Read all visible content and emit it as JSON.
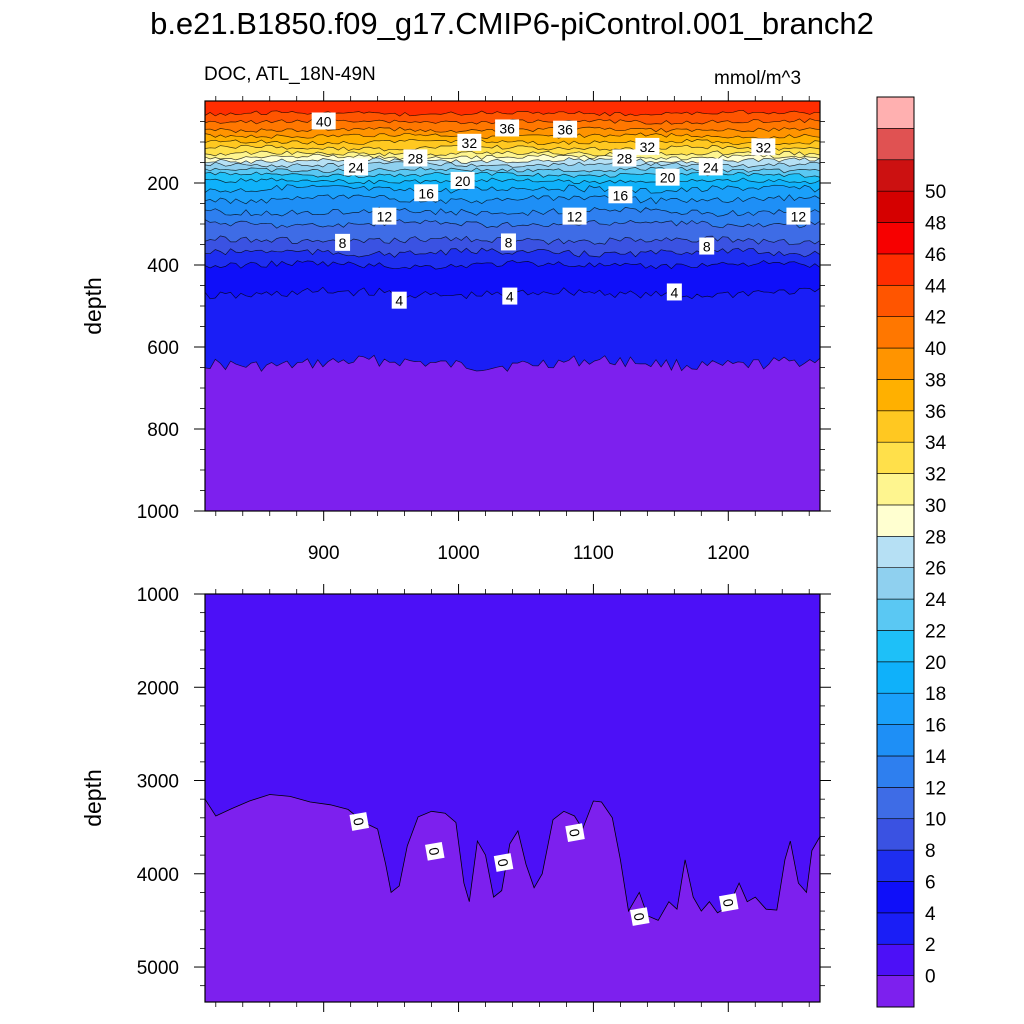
{
  "title": "b.e21.B1850.f09_g17.CMIP6-piControl.001_branch2",
  "variable_label": "DOC, ATL_18N-49N",
  "units": "mmol/m^3",
  "chart_data": {
    "type": "contour",
    "colorbar": {
      "levels": [
        0,
        2,
        4,
        6,
        8,
        10,
        12,
        14,
        16,
        18,
        20,
        22,
        24,
        26,
        28,
        30,
        32,
        34,
        36,
        38,
        40,
        42,
        44,
        46,
        48,
        50
      ],
      "tick_labels": [
        "0",
        "2",
        "4",
        "6",
        "8",
        "10",
        "12",
        "14",
        "16",
        "18",
        "20",
        "22",
        "24",
        "26",
        "28",
        "30",
        "32",
        "34",
        "36",
        "38",
        "40",
        "42",
        "44",
        "46",
        "48",
        "50"
      ],
      "colors": [
        "#7d20ee",
        "#4c10f7",
        "#1a1ef6",
        "#0f0ff9",
        "#1e2ef0",
        "#3a52e2",
        "#3e6ce6",
        "#2e7fef",
        "#1e8ff6",
        "#1aa0fa",
        "#0fb1fa",
        "#1ec0f8",
        "#5ac8f3",
        "#8fd0ef",
        "#b6e0f4",
        "#ffffd0",
        "#fef58f",
        "#ffe04a",
        "#ffc821",
        "#ffb000",
        "#ff9400",
        "#ff7700",
        "#ff5500",
        "#ff2d00",
        "#f70000",
        "#d50000",
        "#cc1111",
        "#e05252",
        "#ffb0b0"
      ]
    },
    "panels": [
      {
        "name": "upper",
        "ylabel": "depth",
        "yticks": [
          200,
          400,
          600,
          800,
          1000
        ],
        "yticklabels": [
          "200",
          "400",
          "600",
          "800",
          "1000"
        ],
        "ylim": [
          0,
          1000
        ],
        "xticks": [
          900,
          1000,
          1100,
          1200
        ],
        "xticklabels": [
          "900",
          "1000",
          "1100",
          "1200"
        ],
        "xlim": [
          812,
          1268
        ],
        "contour_lines": [
          {
            "value": 4,
            "depth": 470
          },
          {
            "value": 2,
            "depth": 640
          },
          {
            "value": 6,
            "depth": 400
          },
          {
            "value": 8,
            "depth": 340
          },
          {
            "value": 12,
            "depth": 270
          },
          {
            "value": 16,
            "depth": 215
          },
          {
            "value": 20,
            "depth": 180
          },
          {
            "value": 24,
            "depth": 155
          },
          {
            "value": 28,
            "depth": 135
          },
          {
            "value": 32,
            "depth": 100
          },
          {
            "value": 36,
            "depth": 70
          },
          {
            "value": 40,
            "depth": 30
          }
        ],
        "contour_labels": [
          {
            "text": "40",
            "x": 900,
            "depth": 50
          },
          {
            "text": "36",
            "x": 1036,
            "depth": 67
          },
          {
            "text": "36",
            "x": 1079,
            "depth": 70
          },
          {
            "text": "32",
            "x": 1008,
            "depth": 102
          },
          {
            "text": "32",
            "x": 1140,
            "depth": 112
          },
          {
            "text": "32",
            "x": 1226,
            "depth": 113
          },
          {
            "text": "28",
            "x": 968,
            "depth": 140
          },
          {
            "text": "28",
            "x": 1123,
            "depth": 140
          },
          {
            "text": "24",
            "x": 924,
            "depth": 162
          },
          {
            "text": "24",
            "x": 1187,
            "depth": 162
          },
          {
            "text": "20",
            "x": 1003,
            "depth": 195
          },
          {
            "text": "20",
            "x": 1155,
            "depth": 187
          },
          {
            "text": "16",
            "x": 976,
            "depth": 225
          },
          {
            "text": "16",
            "x": 1120,
            "depth": 230
          },
          {
            "text": "12",
            "x": 945,
            "depth": 282
          },
          {
            "text": "12",
            "x": 1086,
            "depth": 282
          },
          {
            "text": "12",
            "x": 1252,
            "depth": 282
          },
          {
            "text": "8",
            "x": 914,
            "depth": 346
          },
          {
            "text": "8",
            "x": 1037,
            "depth": 345
          },
          {
            "text": "8",
            "x": 1184,
            "depth": 355
          },
          {
            "text": "4",
            "x": 956,
            "depth": 487
          },
          {
            "text": "4",
            "x": 1038,
            "depth": 477
          },
          {
            "text": "4",
            "x": 1160,
            "depth": 467
          }
        ]
      },
      {
        "name": "lower",
        "ylabel": "depth",
        "yticks": [
          1000,
          2000,
          3000,
          4000,
          5000
        ],
        "yticklabels": [
          "1000",
          "2000",
          "3000",
          "4000",
          "5000"
        ],
        "ylim": [
          1000,
          5375
        ],
        "xlim": [
          812,
          1268
        ],
        "contour_lines": [
          {
            "value": 0,
            "depth_mean": 3800
          }
        ],
        "contour_labels": [
          {
            "text": "0",
            "x": 926,
            "depth": 3440
          },
          {
            "text": "0",
            "x": 982,
            "depth": 3760
          },
          {
            "text": "0",
            "x": 1033,
            "depth": 3880
          },
          {
            "text": "0",
            "x": 1086,
            "depth": 3560
          },
          {
            "text": "0",
            "x": 1134,
            "depth": 4460
          },
          {
            "text": "0",
            "x": 1200,
            "depth": 4310
          }
        ]
      }
    ]
  }
}
